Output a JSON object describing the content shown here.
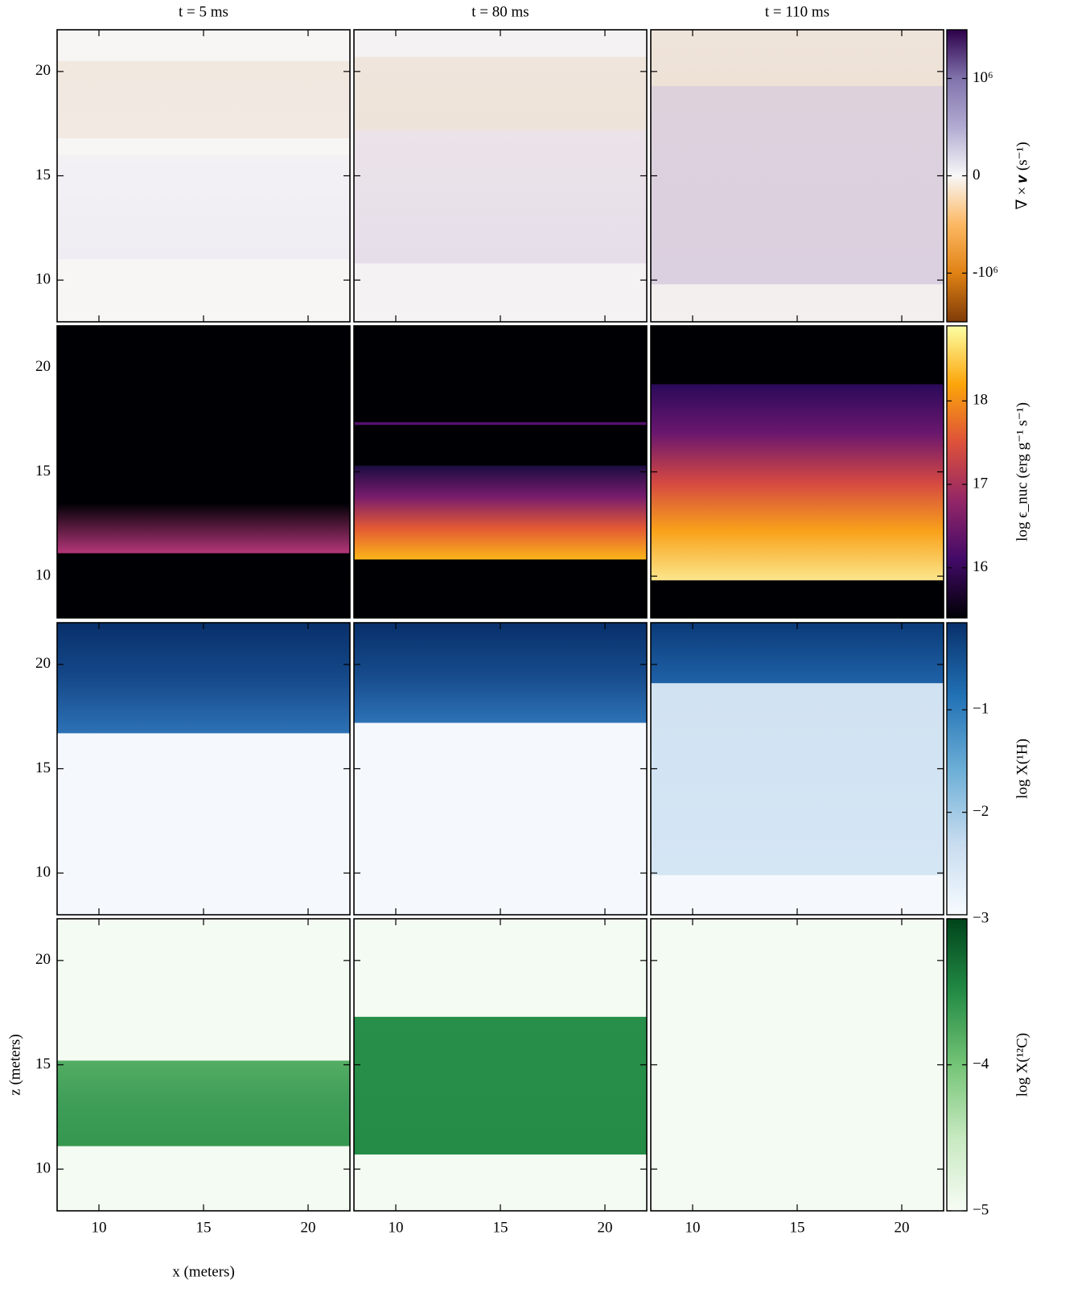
{
  "chart_data": {
    "type": "image",
    "column_titles": [
      "t = 5 ms",
      "t = 80 ms",
      "t = 110 ms"
    ],
    "x_label": "x (meters)",
    "y_label": "z (meters)",
    "xlim": [
      8,
      22
    ],
    "ylim": [
      8,
      22
    ],
    "xticks": [
      10,
      15,
      20
    ],
    "yticks": [
      10,
      15,
      20
    ],
    "rows": [
      {
        "colorbar": {
          "label": "∇ × 𝒗 (s⁻¹)",
          "scale": "symlog",
          "linthresh": 100000,
          "clim": [
            -10000000,
            10000000
          ],
          "ticks": [
            {
              "value": 1000000,
              "label": "10⁶"
            },
            0,
            {
              "value": -1000000,
              "label": "-10⁶"
            }
          ],
          "colors": [
            "#7f3b08",
            "#e08214",
            "#fdb863",
            "#f7f7f7",
            "#b2abd2",
            "#8073ac",
            "#2d004b"
          ]
        },
        "panels": [
          {
            "background": "#f7f6f5",
            "layers": [
              {
                "zlim": [
                  11,
                  16
                ],
                "colors": [
                  "#efedf3",
                  "#f3f1f4"
                ]
              },
              {
                "zlim": [
                  16.8,
                  20.5
                ],
                "colors": [
                  "#f1e9e2",
                  "#f1e8e0"
                ]
              }
            ]
          },
          {
            "background": "#f4f2f2",
            "layers": [
              {
                "zlim": [
                  10.8,
                  17.2
                ],
                "colors": [
                  "#e6dfea",
                  "#ebe3e8"
                ]
              },
              {
                "zlim": [
                  17.2,
                  20.7
                ],
                "colors": [
                  "#eee3d9",
                  "#efe5dc"
                ]
              }
            ]
          },
          {
            "background": "#f3efee",
            "layers": [
              {
                "zlim": [
                  9.8,
                  19.3
                ],
                "colors": [
                  "#dbd0e0",
                  "#ddd1dc"
                ]
              },
              {
                "zlim": [
                  19.3,
                  22
                ],
                "colors": [
                  "#eee2d6",
                  "#efe4da"
                ]
              }
            ]
          }
        ]
      },
      {
        "colorbar": {
          "label": "log ϵ_nuc (erg g⁻¹ s⁻¹)",
          "scale": "linear",
          "clim": [
            15.4,
            18.9
          ],
          "ticks": [
            16,
            17,
            18
          ],
          "colors": [
            "#000004",
            "#420a68",
            "#932667",
            "#dd513a",
            "#fca50a",
            "#fcffa4"
          ]
        },
        "panels": [
          {
            "background": "#000004",
            "layers": [
              {
                "zlim": [
                  11.1,
                  13.5
                ],
                "colors": [
                  "#b5367a",
                  "#000004"
                ]
              }
            ]
          },
          {
            "background": "#000004",
            "layers": [
              {
                "zlim": [
                  10.8,
                  15.3
                ],
                "colors": [
                  "#fbb61a",
                  "#e35933",
                  "#781c6d",
                  "#1b0c41"
                ]
              },
              {
                "zlim": [
                  17.25,
                  17.38
                ],
                "colors": [
                  "#56106e",
                  "#56106e"
                ]
              }
            ]
          },
          {
            "background": "#000004",
            "layers": [
              {
                "zlim": [
                  9.8,
                  19.2
                ],
                "colors": [
                  "#fbe68c",
                  "#f9a21a",
                  "#d44842",
                  "#6a176e",
                  "#2a0a5a"
                ]
              }
            ]
          }
        ]
      },
      {
        "colorbar": {
          "label": "log X(¹H)",
          "scale": "linear",
          "clim": [
            -3,
            -0.15
          ],
          "ticks": [
            {
              "value": -1,
              "label": "−1"
            },
            {
              "value": -2,
              "label": "−2"
            }
          ],
          "colors": [
            "#f7fbff",
            "#c6dbef",
            "#6baed6",
            "#2171b5",
            "#08306b"
          ]
        },
        "panels": [
          {
            "background": "#f5f9fe",
            "layers": [
              {
                "zlim": [
                  16.7,
                  22
                ],
                "colors": [
                  "#2d72b6",
                  "#15498a",
                  "#08306b"
                ]
              }
            ]
          },
          {
            "background": "#f5f9fe",
            "layers": [
              {
                "zlim": [
                  17.2,
                  22
                ],
                "colors": [
                  "#2d72b6",
                  "#15498a",
                  "#08306b"
                ]
              }
            ]
          },
          {
            "background": "#f5f9fe",
            "layers": [
              {
                "zlim": [
                  9.9,
                  19.1
                ],
                "colors": [
                  "#d4e5f4",
                  "#d1e2f2"
                ]
              },
              {
                "zlim": [
                  19.1,
                  22
                ],
                "colors": [
                  "#1f62a8",
                  "#0b3a78"
                ]
              }
            ]
          }
        ]
      },
      {
        "colorbar": {
          "label": "log X(¹²C)",
          "scale": "linear",
          "clim": [
            -5,
            -3
          ],
          "ticks": [
            {
              "value": -3,
              "label": "−3"
            },
            {
              "value": -4,
              "label": "−4"
            },
            {
              "value": -5,
              "label": "−5"
            }
          ],
          "colors": [
            "#f7fcf5",
            "#c7e9c0",
            "#74c476",
            "#238b45",
            "#00441b"
          ]
        },
        "panels": [
          {
            "background": "#f4fbf2",
            "layers": [
              {
                "zlim": [
                  11.1,
                  15.2
                ],
                "colors": [
                  "#35984f",
                  "#3e9d58",
                  "#54ad63"
                ]
              }
            ]
          },
          {
            "background": "#f4fbf2",
            "layers": [
              {
                "zlim": [
                  10.7,
                  17.3
                ],
                "colors": [
                  "#248c46",
                  "#278f49"
                ]
              }
            ]
          },
          {
            "background": "#f4fbf2",
            "layers": []
          }
        ]
      }
    ]
  }
}
